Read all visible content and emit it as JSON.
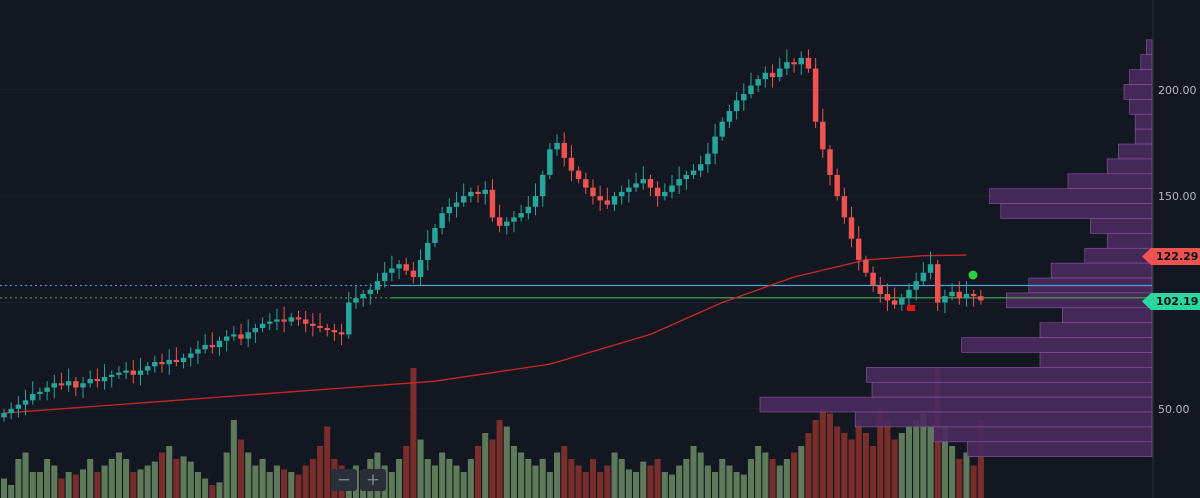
{
  "colors": {
    "background": "#131722",
    "up": "#26a69a",
    "down": "#ef5350",
    "volume_up": "#5f7a5a",
    "volume_down": "#7a2e2c",
    "ma_line": "#c62828",
    "profile": "#4a2a5e",
    "profile_border": "#8a5aa6",
    "blue_line": "#4aa3df",
    "green_line": "#4caf50",
    "grid": "#1e2230"
  },
  "controls": {
    "zoom_out": "−",
    "zoom_in": "+"
  },
  "price_tags": {
    "upper": "122.29",
    "lower": "102.19"
  },
  "chart_data": {
    "type": "candlestick",
    "title": "",
    "y_axis": {
      "ticks": [
        "200.00",
        "150.00",
        "50.00"
      ],
      "range": [
        25,
        230
      ]
    },
    "horizontal_lines": [
      {
        "price": 108,
        "style": "solid",
        "color": "#4aa3df",
        "extend": "from-mid"
      },
      {
        "price": 102.19,
        "style": "solid",
        "color": "#4caf50",
        "extend": "from-mid"
      }
    ],
    "moving_average": [
      [
        0,
        48
      ],
      [
        20,
        53
      ],
      [
        40,
        58
      ],
      [
        60,
        63
      ],
      [
        76,
        71
      ],
      [
        90,
        85
      ],
      [
        100,
        100
      ],
      [
        110,
        112
      ],
      [
        120,
        120
      ],
      [
        128,
        122
      ],
      [
        134,
        122.3
      ]
    ],
    "closes": [
      48,
      50,
      52,
      54,
      57,
      58,
      60,
      62,
      61,
      63,
      60,
      62,
      64,
      63,
      65,
      66,
      67,
      68,
      66,
      68,
      70,
      72,
      71,
      73,
      72,
      74,
      76,
      78,
      80,
      79,
      82,
      84,
      85,
      83,
      86,
      88,
      90,
      91,
      92,
      91,
      93,
      92,
      90,
      89,
      88,
      87,
      86,
      85,
      100,
      102,
      104,
      106,
      110,
      114,
      116,
      118,
      115,
      112,
      120,
      128,
      135,
      142,
      145,
      147,
      150,
      152,
      151,
      153,
      140,
      136,
      138,
      140,
      142,
      145,
      150,
      160,
      172,
      175,
      168,
      162,
      158,
      154,
      150,
      148,
      146,
      150,
      152,
      154,
      156,
      158,
      154,
      150,
      152,
      155,
      158,
      160,
      162,
      165,
      170,
      178,
      185,
      190,
      195,
      198,
      202,
      205,
      208,
      206,
      210,
      213,
      212,
      215,
      210,
      185,
      172,
      160,
      150,
      140,
      130,
      120,
      114,
      108,
      104,
      101,
      99,
      102,
      106,
      110,
      114,
      118,
      100,
      103,
      105,
      102,
      104,
      103,
      101
    ],
    "volume_profile": [
      [
        220,
        0.01
      ],
      [
        213,
        0.02
      ],
      [
        206,
        0.04
      ],
      [
        199,
        0.05
      ],
      [
        192,
        0.04
      ],
      [
        185,
        0.03
      ],
      [
        178,
        0.03
      ],
      [
        171,
        0.06
      ],
      [
        164,
        0.08
      ],
      [
        157,
        0.15
      ],
      [
        150,
        0.29
      ],
      [
        143,
        0.27
      ],
      [
        136,
        0.11
      ],
      [
        129,
        0.08
      ],
      [
        122,
        0.12
      ],
      [
        115,
        0.18
      ],
      [
        108,
        0.22
      ],
      [
        101,
        0.26
      ],
      [
        94,
        0.16
      ],
      [
        87,
        0.2
      ],
      [
        80,
        0.34
      ],
      [
        73,
        0.2
      ],
      [
        66,
        0.51
      ],
      [
        59,
        0.5
      ],
      [
        52,
        0.7
      ],
      [
        45,
        0.53
      ],
      [
        38,
        0.39
      ],
      [
        31,
        0.33
      ]
    ],
    "volumes": [
      0.15,
      0.1,
      0.3,
      0.35,
      0.2,
      0.2,
      0.3,
      0.25,
      0.15,
      0.2,
      0.18,
      0.22,
      0.3,
      0.2,
      0.25,
      0.3,
      0.35,
      0.3,
      0.2,
      0.22,
      0.25,
      0.28,
      0.35,
      0.4,
      0.3,
      0.32,
      0.28,
      0.2,
      0.15,
      0.1,
      0.12,
      0.35,
      0.6,
      0.45,
      0.35,
      0.25,
      0.3,
      0.2,
      0.25,
      0.22,
      0.2,
      0.18,
      0.25,
      0.3,
      0.4,
      0.55,
      0.3,
      0.25,
      0.2,
      0.25,
      0.2,
      0.3,
      0.35,
      0.25,
      0.2,
      0.3,
      0.4,
      1.0,
      0.45,
      0.3,
      0.25,
      0.35,
      0.3,
      0.25,
      0.2,
      0.3,
      0.4,
      0.5,
      0.45,
      0.6,
      0.55,
      0.4,
      0.35,
      0.3,
      0.25,
      0.3,
      0.2,
      0.35,
      0.4,
      0.3,
      0.25,
      0.2,
      0.3,
      0.2,
      0.25,
      0.35,
      0.3,
      0.22,
      0.2,
      0.28,
      0.25,
      0.3,
      0.2,
      0.18,
      0.25,
      0.3,
      0.4,
      0.35,
      0.25,
      0.2,
      0.3,
      0.25,
      0.2,
      0.18,
      0.3,
      0.4,
      0.35,
      0.3,
      0.25,
      0.3,
      0.35,
      0.4,
      0.5,
      0.6,
      0.7,
      0.65,
      0.55,
      0.5,
      0.45,
      0.6,
      0.5,
      0.4,
      0.7,
      0.6,
      0.45,
      0.5,
      0.55,
      0.6,
      0.65,
      0.55,
      1.0,
      0.55,
      0.4,
      0.3,
      0.35,
      0.25,
      0.6
    ]
  }
}
